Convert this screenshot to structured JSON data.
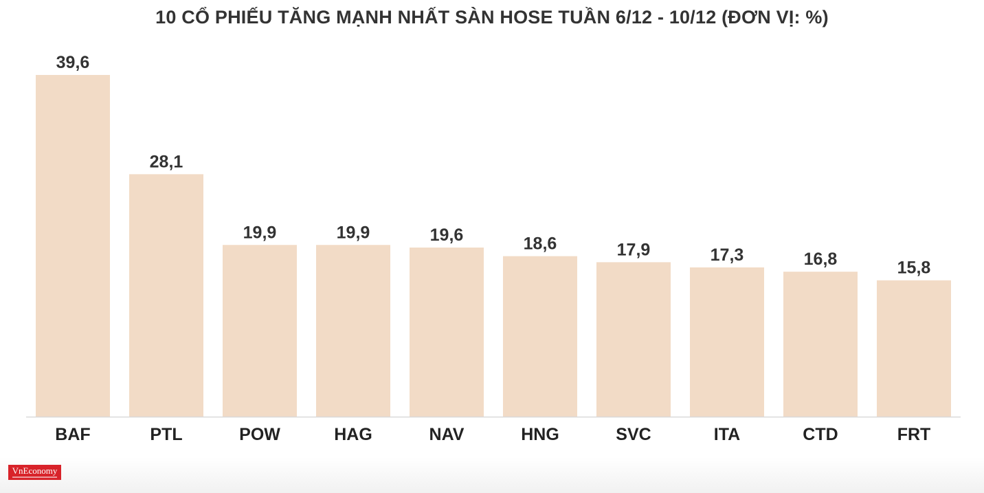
{
  "chart_data": {
    "type": "bar",
    "title": "10 CỔ PHIẾU TĂNG MẠNH NHẤT SÀN HOSE TUẦN 6/12 - 10/12 (ĐƠN VỊ: %)",
    "categories": [
      "BAF",
      "PTL",
      "POW",
      "HAG",
      "NAV",
      "HNG",
      "SVC",
      "ITA",
      "CTD",
      "FRT"
    ],
    "values": [
      39.6,
      28.1,
      19.9,
      19.9,
      19.6,
      18.6,
      17.9,
      17.3,
      16.8,
      15.8
    ],
    "value_labels": [
      "39,6",
      "28,1",
      "19,9",
      "19,9",
      "19,6",
      "18,6",
      "17,9",
      "17,3",
      "16,8",
      "15,8"
    ],
    "xlabel": "",
    "ylabel": "",
    "ylim": [
      0,
      40
    ],
    "grid": false,
    "bar_color": "#f2dbc6",
    "axis_color": "#d9d9d9",
    "text_color": "#333333"
  },
  "logo": {
    "text": "VnEconomy",
    "color": "#d8232a"
  }
}
